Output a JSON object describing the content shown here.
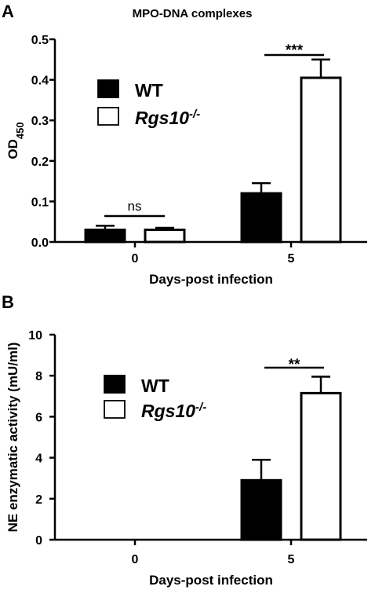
{
  "chart_data": [
    {
      "panel": "A",
      "type": "bar",
      "title": "MPO-DNA complexes",
      "ylabel": "OD",
      "ylabel_sub": "450",
      "xlabel": "Days-post infection",
      "ylim": [
        0,
        0.5
      ],
      "yticks": [
        "0.0",
        "0.1",
        "0.2",
        "0.3",
        "0.4",
        "0.5"
      ],
      "categories": [
        "0",
        "5"
      ],
      "series": [
        {
          "name": "WT",
          "values": [
            0.03,
            0.12
          ],
          "errors": [
            0.01,
            0.025
          ],
          "fill": "#000000"
        },
        {
          "name": "Rgs10",
          "name_sup": "-/-",
          "values": [
            0.03,
            0.405
          ],
          "errors": [
            0.005,
            0.045
          ],
          "fill": "#ffffff"
        }
      ],
      "significance": [
        {
          "category": 0,
          "label": "ns"
        },
        {
          "category": 1,
          "label": "***"
        }
      ]
    },
    {
      "panel": "B",
      "type": "bar",
      "title": "",
      "ylabel": "NE enzymatic activity (mU/ml)",
      "xlabel": "Days-post infection",
      "ylim": [
        0,
        10
      ],
      "yticks": [
        "0",
        "2",
        "4",
        "6",
        "8",
        "10"
      ],
      "categories": [
        "0",
        "5"
      ],
      "series": [
        {
          "name": "WT",
          "values": [
            0,
            2.9
          ],
          "errors": [
            0,
            1.0
          ],
          "fill": "#000000"
        },
        {
          "name": "Rgs10",
          "name_sup": "-/-",
          "values": [
            0,
            7.15
          ],
          "errors": [
            0,
            0.8
          ],
          "fill": "#ffffff"
        }
      ],
      "significance": [
        {
          "category": 1,
          "label": "**"
        }
      ]
    }
  ]
}
